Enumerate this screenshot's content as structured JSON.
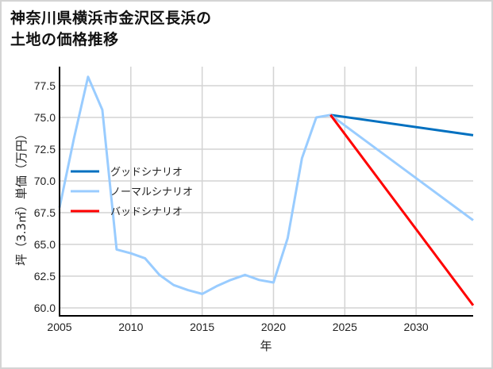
{
  "title_line1": "神奈川県横浜市金沢区長浜の",
  "title_line2": "土地の価格推移",
  "chart_data": {
    "type": "line",
    "title": "神奈川県横浜市金沢区長浜の土地の価格推移",
    "xlabel": "年",
    "ylabel": "坪（3.3㎡）単価（万円）",
    "xlim": [
      2005,
      2034
    ],
    "ylim": [
      59.6,
      79.0
    ],
    "xticks": [
      2005,
      2010,
      2015,
      2020,
      2025,
      2030
    ],
    "yticks": [
      60.0,
      62.5,
      65.0,
      67.5,
      70.0,
      72.5,
      75.0,
      77.5
    ],
    "ytick_labels": [
      "60.0",
      "62.5",
      "65.0",
      "67.5",
      "70.0",
      "72.5",
      "75.0",
      "77.5"
    ],
    "grid": true,
    "legend_position": "center-left",
    "series": [
      {
        "name": "グッドシナリオ",
        "color": "#0070c0",
        "x": [
          2024,
          2034
        ],
        "values": [
          75.2,
          73.6
        ]
      },
      {
        "name": "ノーマルシナリオ",
        "color": "#99ccff",
        "x": [
          2005,
          2006,
          2007,
          2008,
          2009,
          2010,
          2011,
          2012,
          2013,
          2014,
          2015,
          2016,
          2017,
          2018,
          2019,
          2020,
          2021,
          2022,
          2023,
          2024,
          2034
        ],
        "values": [
          67.9,
          73.3,
          78.2,
          75.6,
          64.6,
          64.3,
          63.9,
          62.6,
          61.8,
          61.4,
          61.1,
          61.7,
          62.2,
          62.6,
          62.2,
          62.0,
          65.5,
          71.8,
          75.0,
          75.2,
          66.9
        ]
      },
      {
        "name": "バッドシナリオ",
        "color": "#ff0000",
        "x": [
          2024,
          2034
        ],
        "values": [
          75.2,
          60.2
        ]
      }
    ]
  }
}
